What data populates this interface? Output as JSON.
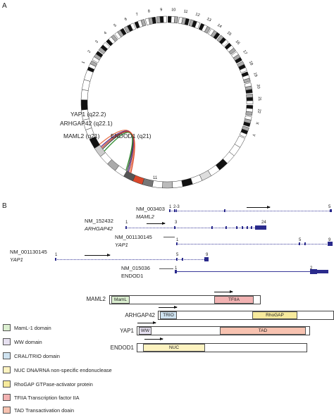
{
  "panel_a": {
    "label": "A",
    "chromosomes": [
      "1",
      "2",
      "3",
      "4",
      "5",
      "6",
      "7",
      "8",
      "9",
      "10",
      "11",
      "12",
      "13",
      "14",
      "15",
      "16",
      "17",
      "18",
      "19",
      "20",
      "21",
      "22",
      "X",
      "Y"
    ],
    "bottom_chrom_label": "11",
    "fusion_labels": {
      "yap1": "YAP1 (q22.2)",
      "arhgap42": "ARHGAP42 (q22.1)",
      "maml2": "MAML2 (q21)",
      "endod1": "ENDOD1 (q21)"
    },
    "colors": {
      "yap1": "#e8734a",
      "arhgap42": "#5a2d8c",
      "maml2": "#444444",
      "endod1": "#2e8b2e",
      "highlight": "#d9472b"
    }
  },
  "panel_b": {
    "label": "B",
    "transcripts": {
      "maml2": {
        "acc": "NM_003403",
        "gene": "MAML2",
        "exon_first": "1",
        "exon_range": "2-3",
        "exon_last": "5"
      },
      "arhgap42": {
        "acc": "NM_152432",
        "gene": "ARHGAP42",
        "exon_first": "1",
        "exon_mid": "3",
        "exon_last": "24"
      },
      "yap1_short": {
        "acc": "NM_001130145",
        "gene": "YAP1",
        "exon_first": "1",
        "exon_mid": "5",
        "exon_last": "9"
      },
      "yap1_long": {
        "acc": "NM_001130145",
        "gene": "YAP1",
        "exon_first": "1",
        "exon_mid": "5",
        "exon_last": "9"
      },
      "endod1": {
        "acc": "NM_015036",
        "gene": "ENDOD1",
        "exon_first": "1",
        "exon_last": "2"
      }
    },
    "proteins": {
      "maml2": {
        "name": "MAML2",
        "domains": [
          "MamL",
          "TFIIA"
        ]
      },
      "arhgap42": {
        "name": "ARHGAP42",
        "domains": [
          "TRIO",
          "RhoGAP"
        ]
      },
      "yap1": {
        "name": "YAP1",
        "domains": [
          "WW",
          "TAD"
        ]
      },
      "endod1": {
        "name": "ENDOD1",
        "domains": [
          "NUC"
        ]
      }
    },
    "legend": [
      {
        "label": "MamL-1 domain",
        "color": "#dbefd0"
      },
      {
        "label": "WW domain",
        "color": "#e6e0f0"
      },
      {
        "label": "CRAL/TRIO domain",
        "color": "#cfe3f1"
      },
      {
        "label": "NUC DNA/RNA non-specific endonuclease",
        "color": "#fdf3c0"
      },
      {
        "label": "RhoGAP GTPase-activator protein",
        "color": "#f7ea9c"
      },
      {
        "label": "TFIIA Transcription factor IIA",
        "color": "#f2b2b2"
      },
      {
        "label": "TAD Transactivation doain",
        "color": "#f7c2b0"
      }
    ],
    "domain_colors": {
      "MamL": "#dbefd0",
      "TFIIA": "#f2b2b2",
      "TRIO": "#cfe3f1",
      "RhoGAP": "#f7ea9c",
      "WW": "#e6e0f0",
      "TAD": "#f7c2b0",
      "NUC": "#fdf3c0"
    }
  }
}
